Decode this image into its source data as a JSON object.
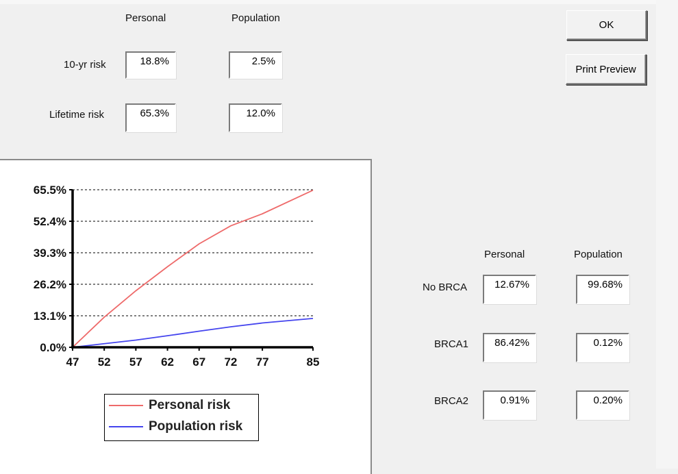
{
  "risk": {
    "header_personal": "Personal",
    "header_population": "Population",
    "rows": [
      {
        "label": "10-yr risk",
        "personal": "18.8%",
        "population": "2.5%"
      },
      {
        "label": "Lifetime risk",
        "personal": "65.3%",
        "population": "12.0%"
      }
    ]
  },
  "buttons": {
    "ok": "OK",
    "print_preview": "Print Preview"
  },
  "brca": {
    "header_personal": "Personal",
    "header_population": "Population",
    "rows": [
      {
        "label": "No BRCA",
        "personal": "12.67%",
        "population": "99.68%"
      },
      {
        "label": "BRCA1",
        "personal": "86.42%",
        "population": "0.12%"
      },
      {
        "label": "BRCA2",
        "personal": "0.91%",
        "population": "0.20%"
      }
    ]
  },
  "chart_data": {
    "type": "line",
    "x": [
      47,
      52,
      57,
      62,
      67,
      72,
      77,
      85
    ],
    "x_ticks": [
      "47",
      "52",
      "57",
      "62",
      "67",
      "72",
      "77",
      "85"
    ],
    "y_ticks": [
      "0.0%",
      "13.1%",
      "26.2%",
      "39.3%",
      "52.4%",
      "65.5%"
    ],
    "ylim": [
      0,
      65.5
    ],
    "xlim": [
      47,
      85
    ],
    "grid": "horizontal dashed",
    "series": [
      {
        "name": "Personal risk",
        "color": "#ee6a6a",
        "values": [
          0,
          12.5,
          23.5,
          33.5,
          43.0,
          50.5,
          55.5,
          65.3
        ]
      },
      {
        "name": "Population risk",
        "color": "#4444ee",
        "values": [
          0,
          1.5,
          3.0,
          4.8,
          6.7,
          8.5,
          10.1,
          12.0
        ]
      }
    ],
    "legend_position": "bottom"
  }
}
